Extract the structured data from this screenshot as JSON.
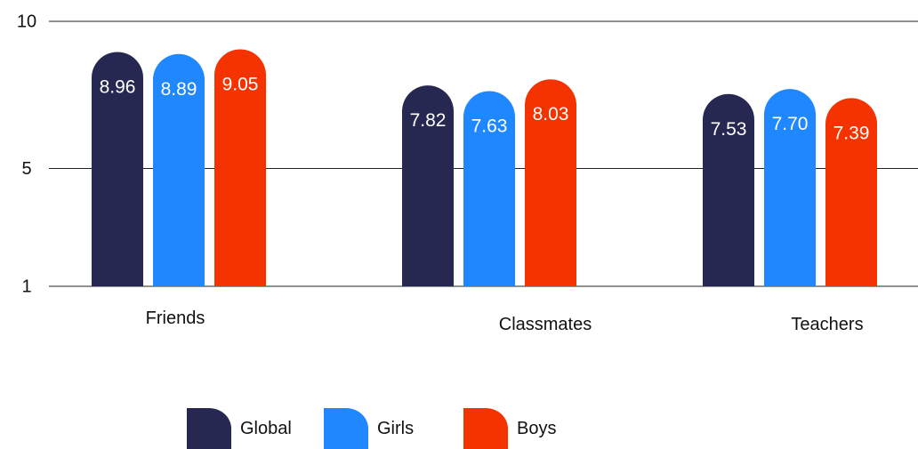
{
  "chart_data": {
    "type": "bar",
    "categories": [
      "Friends",
      "Classmates",
      "Teachers"
    ],
    "series": [
      {
        "name": "Global",
        "color": "#272852",
        "values": [
          8.96,
          7.82,
          7.53
        ],
        "labels": [
          "8.96",
          "7.82",
          "7.53"
        ]
      },
      {
        "name": "Girls",
        "color": "#1F87FF",
        "values": [
          8.89,
          7.63,
          7.7
        ],
        "labels": [
          "8.89",
          "7.63",
          "7.70"
        ]
      },
      {
        "name": "Boys",
        "color": "#F53300",
        "values": [
          9.05,
          8.03,
          7.39
        ],
        "labels": [
          "9.05",
          "8.03",
          "7.39"
        ]
      }
    ],
    "yticks": [
      "10",
      "5",
      "1"
    ],
    "ytick_values": [
      10,
      5,
      1
    ],
    "ylim": [
      1,
      10
    ],
    "grid": true,
    "legend_position": "bottom"
  }
}
